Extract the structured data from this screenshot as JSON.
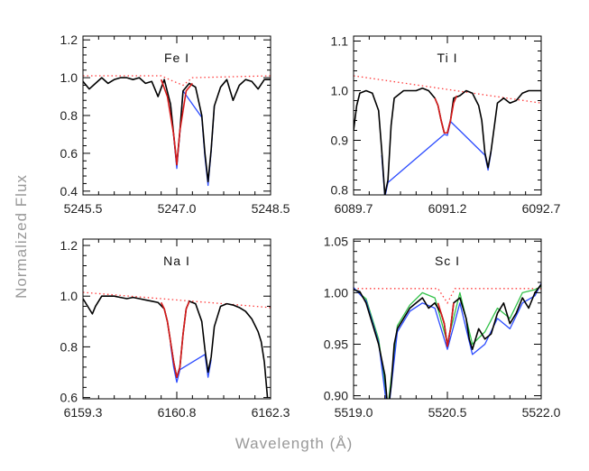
{
  "figure": {
    "xlabel": "Wavelength (Å)",
    "ylabel": "Normalized Flux"
  },
  "colors": {
    "observed": "#000000",
    "model_blue": "#2b4bff",
    "model_green": "#33c24a",
    "fit_red": "#d91a1a",
    "continuum": "#ff3b3b"
  },
  "chart_data": [
    {
      "type": "line",
      "panel_label": "Fe I",
      "xlim": [
        5245.5,
        5248.5
      ],
      "ylim": [
        0.38,
        1.22
      ],
      "xticks": [
        5245.5,
        5247.0,
        5248.5
      ],
      "xtick_labels": [
        "5245.5",
        "5247.0",
        "5248.5"
      ],
      "yticks": [
        0.4,
        0.6,
        0.8,
        1.0,
        1.2
      ],
      "ytick_labels": [
        "0.4",
        "0.6",
        "0.8",
        "1.0",
        "1.2"
      ],
      "continuum": {
        "x": [
          5245.5,
          5246.75,
          5246.95,
          5247.1,
          5247.25,
          5248.5
        ],
        "y": [
          1.01,
          1.01,
          0.98,
          0.96,
          1.0,
          1.01
        ]
      },
      "series": [
        {
          "role": "observed",
          "x": [
            5245.5,
            5245.6,
            5245.7,
            5245.8,
            5245.9,
            5246.0,
            5246.1,
            5246.2,
            5246.3,
            5246.4,
            5246.5,
            5246.6,
            5246.7,
            5246.8,
            5246.9,
            5246.95,
            5247.0,
            5247.05,
            5247.1,
            5247.2,
            5247.3,
            5247.4,
            5247.45,
            5247.5,
            5247.55,
            5247.6,
            5247.7,
            5247.8,
            5247.9,
            5248.0,
            5248.1,
            5248.2,
            5248.3,
            5248.4,
            5248.5
          ],
          "y": [
            0.98,
            0.94,
            0.97,
            1.0,
            0.97,
            0.99,
            1.0,
            1.0,
            0.99,
            1.0,
            0.97,
            0.98,
            0.9,
            0.99,
            0.86,
            0.7,
            0.54,
            0.72,
            0.93,
            0.97,
            0.95,
            0.8,
            0.6,
            0.45,
            0.62,
            0.85,
            0.95,
            0.99,
            0.88,
            0.96,
            0.99,
            0.98,
            0.94,
            0.99,
            0.99
          ]
        },
        {
          "role": "model_blue",
          "x": [
            5246.9,
            5246.95,
            5247.0,
            5247.05,
            5247.1,
            5247.4,
            5247.45,
            5247.5,
            5247.55,
            5247.6
          ],
          "y": [
            0.86,
            0.69,
            0.52,
            0.71,
            0.93,
            0.79,
            0.58,
            0.43,
            0.61,
            0.85
          ]
        },
        {
          "role": "fit_red",
          "x": [
            5246.75,
            5246.85,
            5246.95,
            5247.0,
            5247.05,
            5247.15,
            5247.25
          ],
          "y": [
            0.99,
            0.9,
            0.7,
            0.54,
            0.72,
            0.93,
            0.97
          ]
        }
      ]
    },
    {
      "type": "line",
      "panel_label": "Ti I",
      "xlim": [
        6089.7,
        6092.7
      ],
      "ylim": [
        0.79,
        1.11
      ],
      "xticks": [
        6089.7,
        6091.2,
        6092.7
      ],
      "xtick_labels": [
        "6089.7",
        "6091.2",
        "6092.7"
      ],
      "yticks": [
        0.8,
        0.9,
        1.0,
        1.1
      ],
      "ytick_labels": [
        "0.8",
        "0.9",
        "1.0",
        "1.1"
      ],
      "continuum": {
        "x": [
          6089.7,
          6092.7
        ],
        "y": [
          1.03,
          0.975
        ]
      },
      "series": [
        {
          "role": "observed",
          "x": [
            6089.7,
            6089.75,
            6089.8,
            6089.9,
            6090.0,
            6090.1,
            6090.15,
            6090.2,
            6090.25,
            6090.3,
            6090.35,
            6090.4,
            6090.5,
            6090.6,
            6090.7,
            6090.8,
            6090.9,
            6091.0,
            6091.05,
            6091.1,
            6091.15,
            6091.2,
            6091.25,
            6091.3,
            6091.4,
            6091.5,
            6091.6,
            6091.7,
            6091.75,
            6091.8,
            6091.85,
            6091.9,
            6092.0,
            6092.1,
            6092.2,
            6092.3,
            6092.4,
            6092.5,
            6092.6,
            6092.7
          ],
          "y": [
            0.92,
            0.97,
            0.995,
            1.0,
            0.995,
            0.96,
            0.88,
            0.79,
            0.82,
            0.93,
            0.985,
            0.99,
            1.0,
            1.0,
            1.0,
            1.005,
            1.0,
            0.985,
            0.97,
            0.94,
            0.915,
            0.915,
            0.94,
            0.985,
            0.99,
            1.0,
            0.995,
            0.97,
            0.94,
            0.875,
            0.845,
            0.88,
            0.975,
            0.985,
            0.975,
            0.98,
            0.995,
            1.0,
            1.0,
            1.0
          ]
        },
        {
          "role": "model_blue",
          "x": [
            6090.15,
            6090.2,
            6090.25,
            6091.15,
            6091.2,
            6091.25,
            6091.8,
            6091.85,
            6091.9
          ],
          "y": [
            0.87,
            0.785,
            0.815,
            0.912,
            0.91,
            0.938,
            0.87,
            0.84,
            0.877
          ]
        },
        {
          "role": "fit_red",
          "x": [
            6091.0,
            6091.05,
            6091.1,
            6091.15,
            6091.2,
            6091.25,
            6091.3,
            6091.35
          ],
          "y": [
            0.985,
            0.97,
            0.94,
            0.915,
            0.915,
            0.94,
            0.975,
            0.99
          ]
        }
      ]
    },
    {
      "type": "line",
      "panel_label": "Na I",
      "xlim": [
        6159.3,
        6162.3
      ],
      "ylim": [
        0.595,
        1.225
      ],
      "xticks": [
        6159.3,
        6160.8,
        6162.3
      ],
      "xtick_labels": [
        "6159.3",
        "6160.8",
        "6162.3"
      ],
      "yticks": [
        0.6,
        0.8,
        1.0,
        1.2
      ],
      "ytick_labels": [
        "0.6",
        "0.8",
        "1.0",
        "1.2"
      ],
      "continuum": {
        "x": [
          6159.3,
          6162.3
        ],
        "y": [
          1.015,
          0.955
        ]
      },
      "series": [
        {
          "role": "observed",
          "x": [
            6159.3,
            6159.4,
            6159.45,
            6159.5,
            6159.6,
            6159.7,
            6159.8,
            6159.9,
            6160.0,
            6160.1,
            6160.2,
            6160.3,
            6160.4,
            6160.5,
            6160.6,
            6160.65,
            6160.7,
            6160.75,
            6160.8,
            6160.85,
            6160.9,
            6160.95,
            6161.0,
            6161.1,
            6161.2,
            6161.25,
            6161.3,
            6161.35,
            6161.4,
            6161.5,
            6161.6,
            6161.7,
            6161.8,
            6161.9,
            6162.0,
            6162.1,
            6162.15,
            6162.2,
            6162.25
          ],
          "y": [
            0.99,
            0.95,
            0.93,
            0.96,
            1.0,
            1.0,
            1.0,
            0.995,
            0.99,
            0.995,
            0.99,
            0.985,
            0.98,
            0.975,
            0.95,
            0.9,
            0.82,
            0.74,
            0.68,
            0.72,
            0.85,
            0.95,
            0.98,
            0.97,
            0.9,
            0.79,
            0.7,
            0.76,
            0.88,
            0.96,
            0.97,
            0.965,
            0.955,
            0.94,
            0.91,
            0.86,
            0.82,
            0.74,
            0.6
          ]
        },
        {
          "role": "model_blue",
          "x": [
            6160.7,
            6160.75,
            6160.8,
            6160.85,
            6161.25,
            6161.3,
            6161.35
          ],
          "y": [
            0.81,
            0.72,
            0.66,
            0.71,
            0.77,
            0.68,
            0.75
          ]
        },
        {
          "role": "fit_red",
          "x": [
            6160.55,
            6160.6,
            6160.65,
            6160.7,
            6160.75,
            6160.8,
            6160.85,
            6160.9,
            6160.95,
            6161.0
          ],
          "y": [
            0.975,
            0.95,
            0.9,
            0.82,
            0.74,
            0.68,
            0.72,
            0.85,
            0.95,
            0.98
          ]
        }
      ]
    },
    {
      "type": "line",
      "panel_label": "Sc I",
      "xlim": [
        5519.0,
        5522.0
      ],
      "ylim": [
        0.897,
        1.052
      ],
      "xticks": [
        5519.0,
        5520.5,
        5522.0
      ],
      "xtick_labels": [
        "5519.0",
        "5520.5",
        "5522.0"
      ],
      "yticks": [
        0.9,
        0.95,
        1.0,
        1.05
      ],
      "ytick_labels": [
        "0.90",
        "0.95",
        "1.00",
        "1.05"
      ],
      "continuum": {
        "x": [
          5519.0,
          5520.35,
          5520.5,
          5520.62,
          5522.0
        ],
        "y": [
          1.004,
          1.004,
          0.99,
          1.004,
          1.004
        ]
      },
      "series": [
        {
          "role": "observed",
          "x": [
            5519.0,
            5519.1,
            5519.2,
            5519.3,
            5519.4,
            5519.5,
            5519.55,
            5519.6,
            5519.65,
            5519.7,
            5519.8,
            5519.9,
            5520.0,
            5520.1,
            5520.2,
            5520.3,
            5520.4,
            5520.45,
            5520.5,
            5520.55,
            5520.6,
            5520.7,
            5520.8,
            5520.85,
            5520.9,
            5521.0,
            5521.1,
            5521.2,
            5521.3,
            5521.4,
            5521.5,
            5521.6,
            5521.7,
            5521.8,
            5521.9,
            5522.0
          ],
          "y": [
            1.003,
            1.001,
            0.99,
            0.97,
            0.95,
            0.92,
            0.885,
            0.91,
            0.95,
            0.965,
            0.975,
            0.985,
            0.99,
            0.995,
            0.985,
            0.99,
            0.98,
            0.97,
            0.948,
            0.965,
            0.99,
            0.995,
            0.975,
            0.955,
            0.945,
            0.965,
            0.955,
            0.96,
            0.98,
            0.99,
            0.97,
            0.98,
            0.995,
            0.985,
            1.0,
            1.008
          ]
        },
        {
          "role": "model_blue",
          "x": [
            5519.0,
            5519.2,
            5519.4,
            5519.55,
            5519.7,
            5519.9,
            5520.1,
            5520.3,
            5520.5,
            5520.7,
            5520.9,
            5521.1,
            5521.3,
            5521.5,
            5521.7,
            5521.9,
            5522.0
          ],
          "y": [
            1.005,
            0.992,
            0.952,
            0.88,
            0.962,
            0.982,
            0.99,
            0.985,
            0.945,
            0.99,
            0.94,
            0.95,
            0.975,
            0.965,
            0.99,
            0.997,
            1.009
          ]
        },
        {
          "role": "model_green",
          "x": [
            5519.0,
            5519.2,
            5519.4,
            5519.55,
            5519.7,
            5519.9,
            5520.1,
            5520.3,
            5520.5,
            5520.7,
            5520.9,
            5521.1,
            5521.3,
            5521.5,
            5521.7,
            5521.9,
            5522.0
          ],
          "y": [
            1.004,
            0.994,
            0.955,
            0.89,
            0.968,
            0.988,
            1.0,
            0.995,
            0.951,
            1.0,
            0.95,
            0.962,
            0.985,
            0.975,
            1.0,
            1.003,
            1.006
          ]
        },
        {
          "role": "fit_red",
          "x": [
            5520.35,
            5520.4,
            5520.45,
            5520.5,
            5520.55,
            5520.6
          ],
          "y": [
            0.99,
            0.98,
            0.97,
            0.948,
            0.965,
            0.99
          ]
        }
      ]
    }
  ]
}
